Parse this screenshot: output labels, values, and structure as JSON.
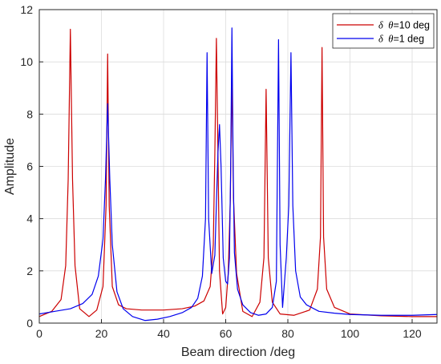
{
  "chart_data": {
    "type": "line",
    "title": "",
    "xlabel": "Beam direction /deg",
    "ylabel": "Amplitude",
    "xlim": [
      0,
      128
    ],
    "ylim": [
      0,
      12
    ],
    "xticks": [
      0,
      20,
      40,
      60,
      80,
      100,
      120
    ],
    "yticks": [
      0,
      2,
      4,
      6,
      8,
      10,
      12
    ],
    "grid": true,
    "legend_position": "top-right",
    "series": [
      {
        "name": "δ θ=10 deg",
        "legend_symbol": "δ",
        "legend_var": "θ",
        "legend_suffix": "=10 deg",
        "color": "#cc0000",
        "x": [
          0,
          4,
          7,
          8.5,
          9.3,
          10,
          10.7,
          11.5,
          13,
          16,
          18.5,
          20.5,
          21.5,
          22,
          22.5,
          23.5,
          25.5,
          28,
          33,
          40,
          46,
          50,
          53,
          55,
          56,
          56.5,
          57,
          57.5,
          58,
          59,
          60,
          60.8,
          61.5,
          62,
          62.5,
          63.5,
          65.5,
          68.5,
          71,
          72.3,
          73,
          73.7,
          75,
          77.5,
          82,
          87,
          89.5,
          90.5,
          91,
          91.5,
          92.5,
          95,
          100,
          110,
          120,
          128
        ],
        "y": [
          0.25,
          0.45,
          0.9,
          2.2,
          5.5,
          11.25,
          5.5,
          2.2,
          0.55,
          0.25,
          0.5,
          1.4,
          4.5,
          10.3,
          4.5,
          1.4,
          0.7,
          0.55,
          0.5,
          0.5,
          0.55,
          0.65,
          0.85,
          1.4,
          3.0,
          6.5,
          10.9,
          6.5,
          2.0,
          0.35,
          0.6,
          1.9,
          4.8,
          9.5,
          4.8,
          1.9,
          0.45,
          0.25,
          0.8,
          2.5,
          8.95,
          2.5,
          0.8,
          0.35,
          0.3,
          0.5,
          1.3,
          3.3,
          10.55,
          3.3,
          1.3,
          0.6,
          0.35,
          0.28,
          0.25,
          0.25
        ]
      },
      {
        "name": "δ θ=1 deg",
        "legend_symbol": "δ",
        "legend_var": "θ",
        "legend_suffix": "=1 deg",
        "color": "#0000ee",
        "x": [
          0,
          5,
          10,
          14,
          17,
          19,
          20.5,
          21.3,
          22,
          22.7,
          23.5,
          25,
          27,
          30,
          34,
          38,
          42,
          46,
          49,
          51,
          52.5,
          53.5,
          54,
          54.5,
          55.5,
          56.5,
          57.5,
          58,
          58.5,
          59.2,
          60,
          60.6,
          61.2,
          61.6,
          62,
          62.4,
          62.8,
          63.8,
          65.5,
          68,
          70.5,
          73,
          75,
          76.3,
          77,
          77.5,
          78.3,
          79.5,
          80.3,
          81,
          81.6,
          82.5,
          84,
          86,
          90,
          95,
          100,
          110,
          120,
          128
        ],
        "y": [
          0.35,
          0.45,
          0.55,
          0.75,
          1.1,
          1.8,
          3.2,
          5.5,
          8.4,
          5.5,
          3.0,
          1.2,
          0.55,
          0.25,
          0.1,
          0.15,
          0.25,
          0.4,
          0.6,
          0.95,
          1.8,
          4.0,
          10.35,
          4.0,
          1.9,
          2.6,
          6.5,
          7.6,
          6.0,
          2.5,
          1.6,
          1.5,
          2.5,
          6.0,
          11.3,
          6.0,
          2.7,
          1.3,
          0.7,
          0.4,
          0.3,
          0.35,
          0.6,
          1.6,
          10.85,
          3.0,
          0.6,
          2.5,
          4.5,
          10.35,
          4.5,
          2.0,
          1.0,
          0.7,
          0.45,
          0.38,
          0.33,
          0.3,
          0.3,
          0.33
        ]
      }
    ]
  }
}
